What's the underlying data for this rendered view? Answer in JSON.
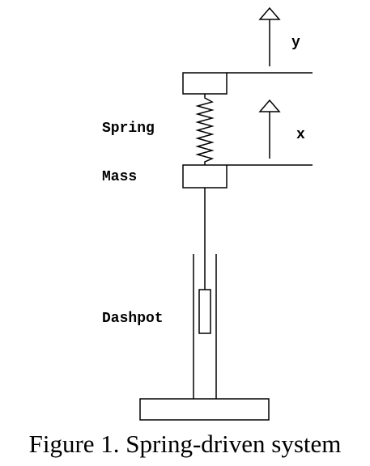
{
  "labels": {
    "y": "y",
    "x": "x",
    "spring": "Spring",
    "mass": "Mass",
    "dashpot": "Dashpot"
  },
  "caption": "Figure 1. Spring-driven system"
}
